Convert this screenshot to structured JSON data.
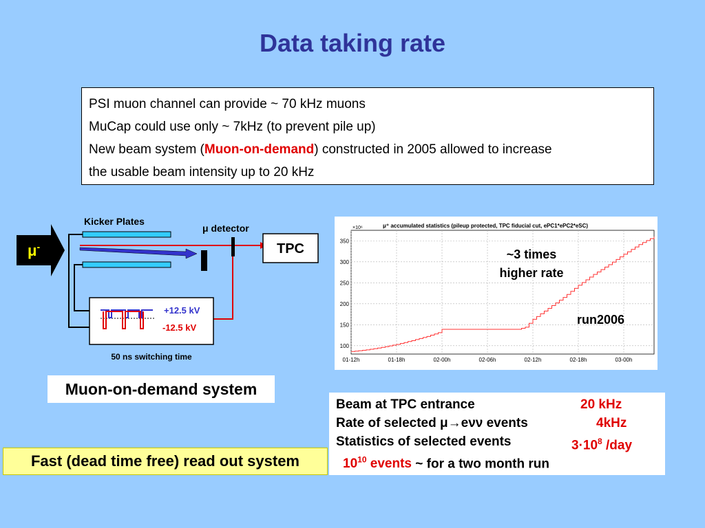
{
  "title": "Data taking rate",
  "info": {
    "line1": "PSI muon channel can provide ~ 70 kHz muons",
    "line2": "MuCap could use only ~ 7kHz (to prevent pile up)",
    "line3_pre": "New beam system (",
    "line3_hl": "Muon-on-demand",
    "line3_post": ") constructed in 2005 allowed to increase",
    "line4": "the usable beam intensity up to 20 kHz"
  },
  "diagram": {
    "kicker_label": "Kicker Plates",
    "detector_label": "μ detector",
    "tpc_label": "TPC",
    "muon_base": "μ",
    "muon_sup": "-",
    "plus_voltage": "+12.5 kV",
    "minus_voltage": "-12.5 kV",
    "switching": "50 ns switching time",
    "colors": {
      "plate": "#33ccff",
      "plus": "#3333cc",
      "minus": "#e00000",
      "arrow_beam": "#3333cc"
    }
  },
  "chart_data": {
    "type": "line",
    "title": "μ⁺ accumulated statistics (pileup protected, TPC fiducial cut, ePC1*ePC2*eSC)",
    "y_exponent": "×10⁶",
    "x_ticks": [
      "01-12h",
      "01-18h",
      "02-00h",
      "02-06h",
      "02-12h",
      "02-18h",
      "03-00h"
    ],
    "y_ticks": [
      100,
      150,
      200,
      250,
      300,
      350
    ],
    "ylim": [
      80,
      375
    ],
    "xlim": [
      0,
      40
    ],
    "x_tick_positions": [
      0,
      6,
      12,
      18,
      24,
      30,
      36
    ],
    "grid": true,
    "series": [
      {
        "color": "#ff3333",
        "x": [
          0,
          2,
          4,
          6,
          8,
          10,
          11.5,
          12,
          14,
          16,
          18,
          20,
          22,
          23,
          24,
          26,
          28,
          30,
          32,
          34,
          36,
          38,
          40
        ],
        "y": [
          86,
          90,
          96,
          103,
          112,
          122,
          131,
          139,
          139,
          139,
          139,
          139,
          139,
          144,
          163,
          189,
          215,
          244,
          270,
          293,
          318,
          341,
          360
        ]
      }
    ],
    "annotation1_line1": "~3 times",
    "annotation1_line2": "higher rate",
    "annotation2": "run2006"
  },
  "caption": "Muon-on-demand system",
  "fast_readout": "Fast (dead time free) read out system",
  "stats": {
    "row1_label": "Beam at TPC entrance",
    "row1_value": "20 kHz",
    "row2_label": "Rate of selected μ→eνν events",
    "row2_value": "4kHz",
    "row3_label": "Statistics of selected events",
    "row3_value_base": "3·10",
    "row3_value_sup": "8",
    "row3_value_tail": " /day",
    "row4_base": "10",
    "row4_sup": "10",
    "row4_events": " events",
    "row4_tail": " ~ for a two month run"
  }
}
